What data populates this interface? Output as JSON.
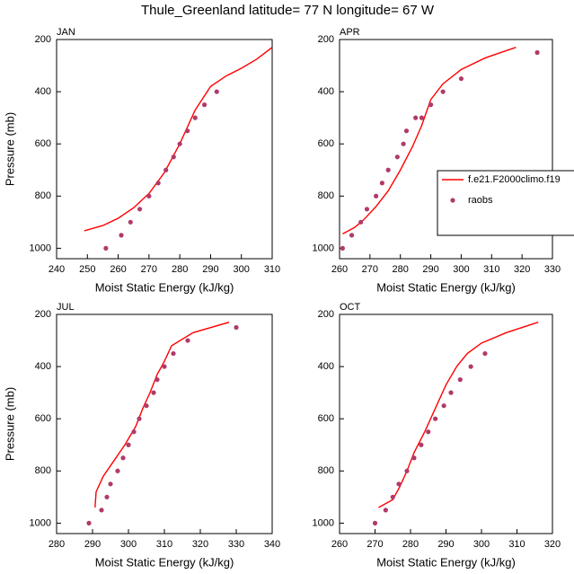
{
  "title": "Thule_Greenland  latitude= 77 N longitude= 67 W",
  "chart_data": [
    {
      "type": "line",
      "panel_label": "JAN",
      "xlabel": "Moist Static Energy (kJ/kg)",
      "ylabel": "Pressure (mb)",
      "xlim": [
        240,
        310
      ],
      "xticks": [
        240,
        250,
        260,
        270,
        280,
        290,
        300,
        310
      ],
      "ylim": [
        200,
        1040
      ],
      "y_reversed": true,
      "yticks": [
        200,
        400,
        600,
        800,
        1000
      ],
      "series": [
        {
          "color": "#ff0000",
          "marker": false,
          "x": [
            249,
            255,
            260,
            265,
            270,
            275,
            280,
            285,
            290,
            295,
            300,
            305,
            310
          ],
          "values": [
            933,
            913,
            885,
            845,
            790,
            710,
            600,
            470,
            380,
            340,
            310,
            275,
            230
          ]
        },
        {
          "color": "#b03a6a",
          "marker": true,
          "x": [
            256,
            261,
            264,
            267,
            270,
            273,
            275.5,
            278,
            280,
            282.5,
            285,
            288,
            292
          ],
          "values": [
            1000,
            950,
            900,
            850,
            800,
            750,
            700,
            650,
            600,
            550,
            500,
            450,
            400
          ]
        }
      ]
    },
    {
      "type": "line",
      "panel_label": "APR",
      "xlabel": "Moist Static Energy (kJ/kg)",
      "xlim": [
        260,
        330
      ],
      "xticks": [
        260,
        270,
        280,
        290,
        300,
        310,
        320,
        330
      ],
      "ylim": [
        200,
        1040
      ],
      "y_reversed": true,
      "yticks": [
        200,
        400,
        600,
        800,
        1000
      ],
      "legend": "right",
      "series": [
        {
          "name": "f.e21.F2000climo.f19",
          "color": "#ff0000",
          "marker": false,
          "x": [
            261,
            265,
            268,
            272,
            276,
            280,
            284,
            287,
            290,
            294,
            300,
            308,
            318
          ],
          "values": [
            945,
            920,
            890,
            840,
            780,
            700,
            610,
            530,
            430,
            370,
            315,
            270,
            230
          ]
        },
        {
          "name": "raobs",
          "color": "#b03a6a",
          "marker": true,
          "x": [
            261,
            264,
            267,
            269,
            272,
            274,
            276,
            279,
            281,
            282,
            285,
            287,
            290,
            294,
            300,
            325
          ],
          "values": [
            1000,
            950,
            900,
            850,
            800,
            750,
            700,
            650,
            600,
            550,
            500,
            500,
            450,
            400,
            350,
            250
          ]
        }
      ]
    },
    {
      "type": "line",
      "panel_label": "JUL",
      "xlabel": "Moist Static Energy (kJ/kg)",
      "ylabel": "Pressure (mb)",
      "xlim": [
        280,
        340
      ],
      "xticks": [
        280,
        290,
        300,
        310,
        320,
        330,
        340
      ],
      "ylim": [
        200,
        1040
      ],
      "y_reversed": true,
      "yticks": [
        200,
        400,
        600,
        800,
        1000
      ],
      "series": [
        {
          "color": "#ff0000",
          "marker": false,
          "x": [
            290.7,
            291,
            293,
            296,
            299,
            302,
            304,
            306,
            308,
            310,
            312,
            318,
            328
          ],
          "values": [
            940,
            880,
            820,
            760,
            700,
            630,
            560,
            500,
            430,
            380,
            320,
            270,
            230
          ]
        },
        {
          "color": "#b03a6a",
          "marker": true,
          "x": [
            289,
            292.5,
            294,
            295,
            297,
            298.5,
            300,
            301.5,
            303,
            305,
            307,
            308,
            310,
            312.5,
            316.5,
            330
          ],
          "values": [
            1000,
            950,
            900,
            850,
            800,
            750,
            700,
            650,
            600,
            550,
            500,
            450,
            400,
            350,
            300,
            250
          ]
        }
      ]
    },
    {
      "type": "line",
      "panel_label": "OCT",
      "xlabel": "Moist Static Energy (kJ/kg)",
      "xlim": [
        260,
        320
      ],
      "xticks": [
        260,
        270,
        280,
        290,
        300,
        310,
        320
      ],
      "ylim": [
        200,
        1040
      ],
      "y_reversed": true,
      "yticks": [
        200,
        400,
        600,
        800,
        1000
      ],
      "series": [
        {
          "color": "#ff0000",
          "marker": false,
          "x": [
            271,
            275,
            277,
            279,
            281,
            284,
            287,
            290,
            293,
            296,
            300,
            307,
            316
          ],
          "values": [
            940,
            910,
            860,
            800,
            730,
            650,
            560,
            470,
            400,
            350,
            310,
            270,
            230
          ]
        },
        {
          "color": "#b03a6a",
          "marker": true,
          "x": [
            270,
            273,
            275,
            276.7,
            279,
            281,
            283,
            285,
            287,
            289.4,
            291.4,
            294,
            297,
            301
          ],
          "values": [
            1000,
            950,
            900,
            850,
            800,
            750,
            700,
            650,
            600,
            550,
            500,
            450,
            400,
            350
          ]
        }
      ]
    }
  ]
}
